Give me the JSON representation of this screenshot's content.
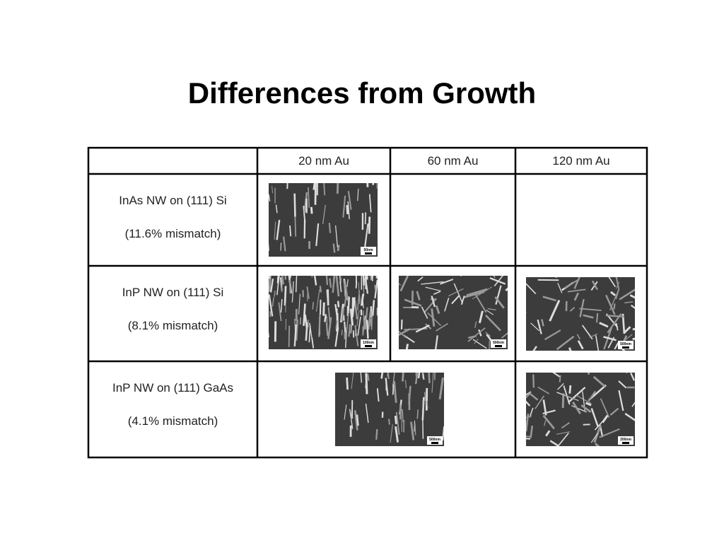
{
  "title": "Differences from Growth",
  "table": {
    "header": [
      "20 nm Au",
      "60 nm Au",
      "120 nm Au"
    ],
    "rows": [
      {
        "label": "InAs NW on (111) Si",
        "note": "(11.6% mismatch)",
        "images": [
          {
            "scale": "50nm"
          }
        ]
      },
      {
        "label": "InP NW on (111) Si",
        "note": "(8.1% mismatch)",
        "images": [
          {
            "scale": "100nm"
          },
          {
            "scale": "500nm"
          },
          {
            "scale": "500nm"
          }
        ]
      },
      {
        "label": "InP NW on (111) GaAs",
        "note": "(4.1% mismatch)",
        "images": [
          {
            "scale": "500nm"
          },
          {
            "scale": "200nm"
          }
        ]
      }
    ]
  }
}
